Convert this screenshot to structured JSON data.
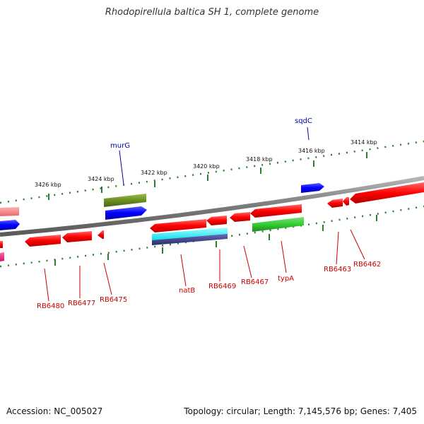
{
  "title": "Rhodopirellula baltica SH 1, complete genome",
  "accession_text": "Accession: NC_005027",
  "topology_text": "Topology: circular; Length: 7,145,576 bp; Genes: 7,405",
  "colors": {
    "backbone": "#808080",
    "forward_tick": "#2e7d32",
    "reverse_tick": "#2e7d32",
    "label_text_red": "#cc0000",
    "label_text_blue": "#0000aa",
    "gene_red": "#ff0000",
    "gene_pink": "#f08080",
    "gene_blue": "#0000ff",
    "gene_olive": "#6b8e23",
    "gene_green": "#32cd32",
    "gene_cyan": "#00ffff",
    "gene_navy": "#3a3a8c",
    "gene_magenta": "#ff1493"
  },
  "kbp_labels": [
    "3426 kbp",
    "3424 kbp",
    "3422 kbp",
    "3420 kbp",
    "3418 kbp",
    "3416 kbp",
    "3414 kbp"
  ],
  "gene_labels": {
    "sqdC": "sqdC",
    "murG": "murG",
    "RB6480": "RB6480",
    "RB6477": "RB6477",
    "RB6475": "RB6475",
    "natB": "natB",
    "RB6469": "RB6469",
    "RB6467": "RB6467",
    "typA": "typA",
    "RB6463": "RB6463",
    "RB6462": "RB6462"
  }
}
